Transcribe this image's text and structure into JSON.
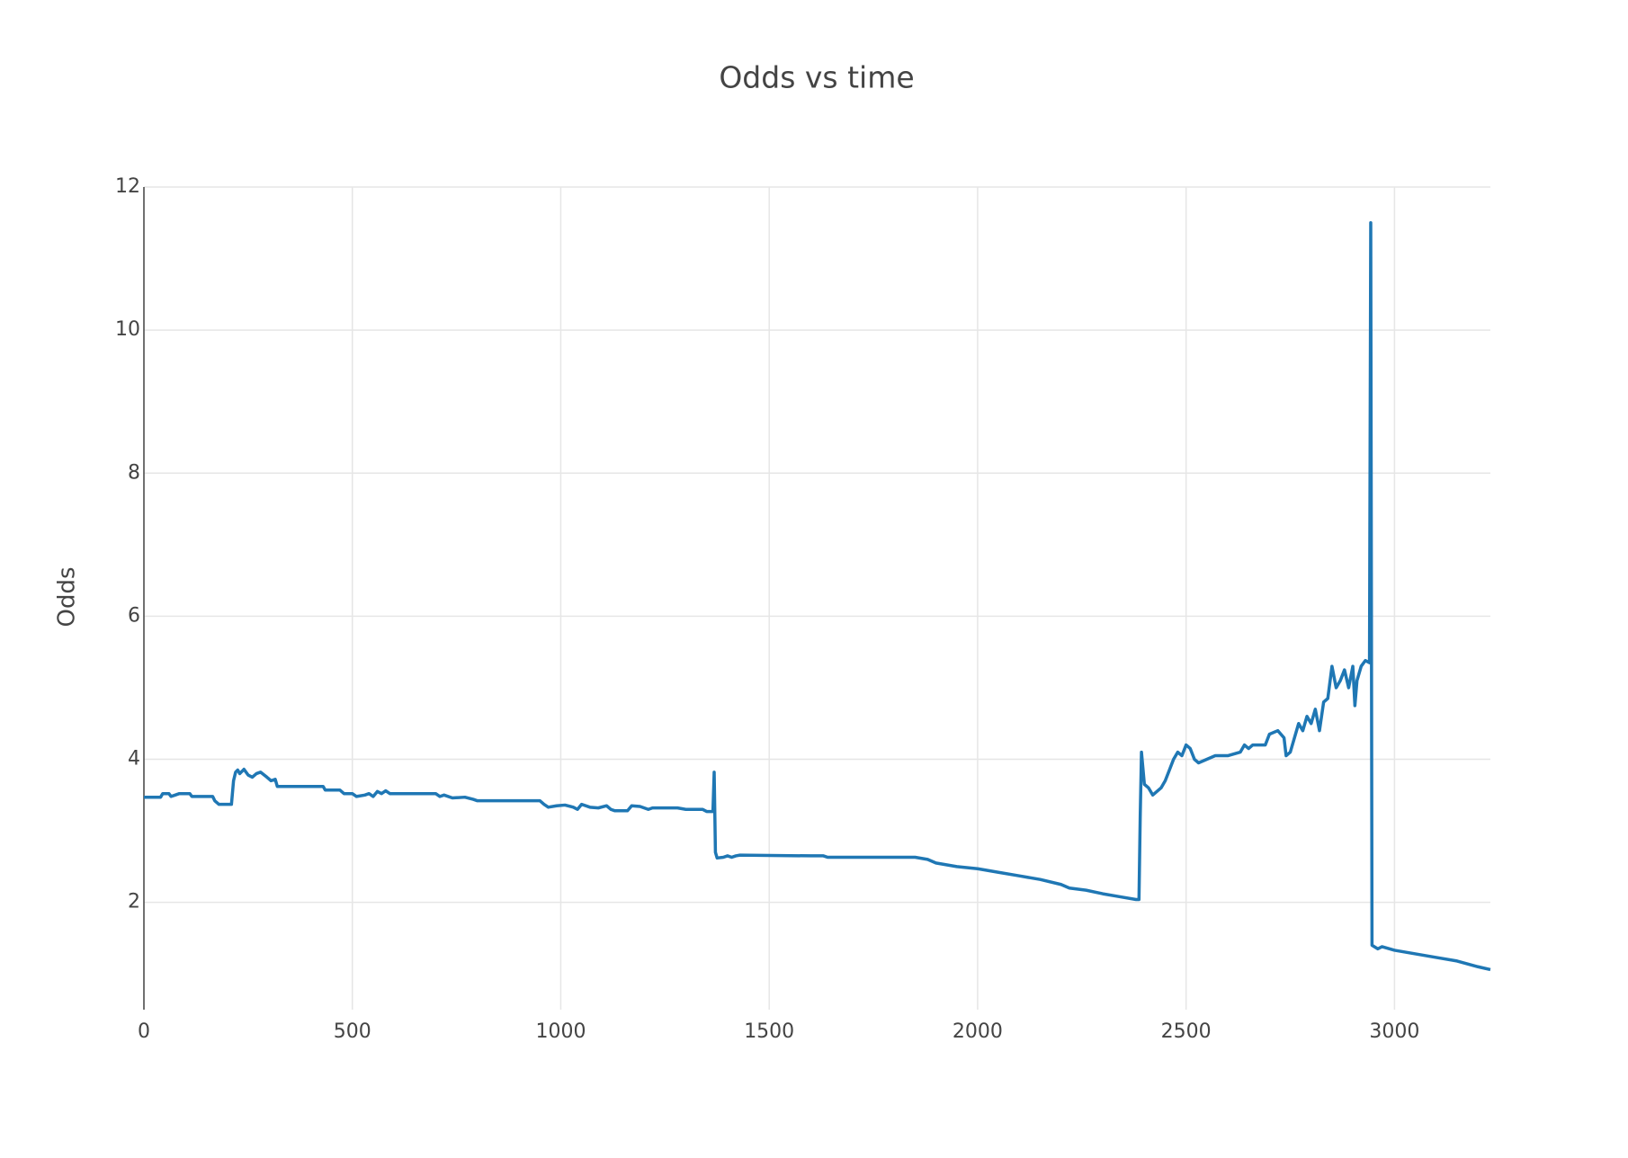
{
  "chart_data": {
    "type": "line",
    "title": "Odds vs time",
    "y_label": "Odds",
    "xlim": [
      0,
      3230
    ],
    "ylim": [
      0.5,
      12
    ],
    "xticks": [
      0,
      500,
      1000,
      1500,
      2000,
      2500,
      3000
    ],
    "yticks": [
      2,
      4,
      6,
      8,
      10,
      12
    ],
    "grid": true,
    "series": [
      {
        "name": "Odds",
        "color": "#1f77b4",
        "x": [
          0,
          40,
          45,
          60,
          65,
          75,
          85,
          110,
          115,
          165,
          170,
          180,
          210,
          215,
          220,
          225,
          230,
          240,
          250,
          260,
          270,
          280,
          295,
          305,
          315,
          320,
          430,
          435,
          470,
          480,
          500,
          510,
          530,
          540,
          550,
          560,
          570,
          580,
          590,
          700,
          710,
          720,
          740,
          770,
          790,
          800,
          950,
          960,
          970,
          990,
          1010,
          1030,
          1040,
          1050,
          1070,
          1090,
          1110,
          1120,
          1130,
          1160,
          1170,
          1190,
          1210,
          1220,
          1240,
          1280,
          1300,
          1340,
          1350,
          1365,
          1368,
          1371,
          1375,
          1390,
          1400,
          1410,
          1420,
          1430,
          1600,
          1630,
          1640,
          1830,
          1850,
          1880,
          1900,
          1950,
          2000,
          2050,
          2100,
          2150,
          2200,
          2220,
          2260,
          2300,
          2340,
          2380,
          2387,
          2390,
          2393,
          2400,
          2410,
          2420,
          2430,
          2440,
          2450,
          2460,
          2470,
          2480,
          2490,
          2500,
          2510,
          2520,
          2530,
          2550,
          2570,
          2600,
          2630,
          2640,
          2650,
          2660,
          2690,
          2700,
          2720,
          2735,
          2740,
          2750,
          2760,
          2770,
          2780,
          2790,
          2800,
          2810,
          2820,
          2830,
          2840,
          2850,
          2860,
          2870,
          2880,
          2890,
          2900,
          2905,
          2910,
          2920,
          2930,
          2940,
          2943,
          2946,
          2960,
          2970,
          3000,
          3050,
          3100,
          3150,
          3200,
          3230
        ],
        "values": [
          3.47,
          3.47,
          3.52,
          3.52,
          3.48,
          3.5,
          3.52,
          3.52,
          3.48,
          3.48,
          3.42,
          3.37,
          3.37,
          3.7,
          3.82,
          3.85,
          3.8,
          3.86,
          3.78,
          3.75,
          3.8,
          3.82,
          3.75,
          3.7,
          3.72,
          3.62,
          3.62,
          3.57,
          3.57,
          3.52,
          3.52,
          3.48,
          3.5,
          3.52,
          3.48,
          3.55,
          3.52,
          3.56,
          3.52,
          3.52,
          3.48,
          3.5,
          3.46,
          3.47,
          3.44,
          3.42,
          3.42,
          3.37,
          3.33,
          3.35,
          3.36,
          3.33,
          3.3,
          3.37,
          3.33,
          3.32,
          3.35,
          3.3,
          3.28,
          3.28,
          3.35,
          3.34,
          3.3,
          3.32,
          3.32,
          3.32,
          3.3,
          3.3,
          3.27,
          3.27,
          3.82,
          2.7,
          2.62,
          2.63,
          2.65,
          2.63,
          2.65,
          2.66,
          2.65,
          2.65,
          2.63,
          2.63,
          2.63,
          2.6,
          2.55,
          2.5,
          2.47,
          2.42,
          2.37,
          2.32,
          2.25,
          2.2,
          2.17,
          2.12,
          2.08,
          2.04,
          2.04,
          3.2,
          4.1,
          3.65,
          3.6,
          3.5,
          3.55,
          3.6,
          3.7,
          3.85,
          4.0,
          4.1,
          4.05,
          4.2,
          4.15,
          4.0,
          3.95,
          4.0,
          4.05,
          4.05,
          4.1,
          4.2,
          4.15,
          4.2,
          4.2,
          4.35,
          4.4,
          4.3,
          4.05,
          4.1,
          4.3,
          4.5,
          4.4,
          4.6,
          4.5,
          4.7,
          4.4,
          4.8,
          4.85,
          5.3,
          5.0,
          5.1,
          5.25,
          5.0,
          5.3,
          4.75,
          5.1,
          5.3,
          5.38,
          5.35,
          11.5,
          1.4,
          1.35,
          1.38,
          1.33,
          1.28,
          1.23,
          1.18,
          1.1,
          1.06
        ]
      }
    ]
  }
}
